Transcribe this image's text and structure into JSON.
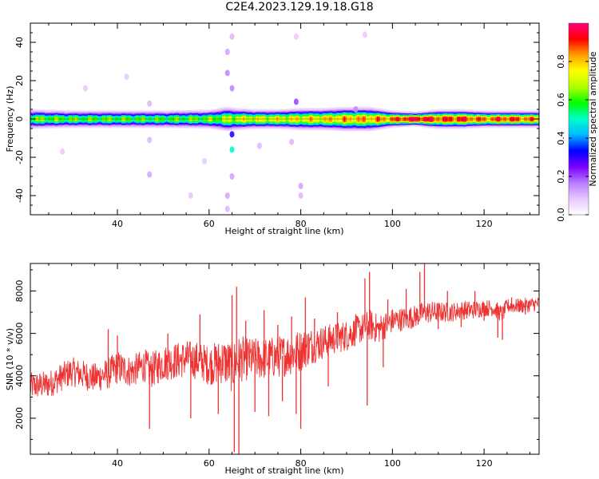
{
  "figure_title": "C2E4.2023.129.19.18.G18",
  "chart_data": [
    {
      "type": "heatmap",
      "xlabel": "Height of straight line (km)",
      "ylabel": "Frequency (Hz)",
      "xlim": [
        21,
        132
      ],
      "ylim": [
        -50,
        50
      ],
      "x_ticks": [
        40,
        60,
        80,
        100,
        120
      ],
      "y_ticks": [
        -40,
        -20,
        0,
        20,
        40
      ],
      "colorbar": {
        "label": "Normalized spectral amplitude",
        "range": [
          0.0,
          1.0
        ],
        "ticks": [
          0.0,
          0.2,
          0.4,
          0.6,
          0.8
        ],
        "colormap": [
          "#ffffff",
          "#e9c8ff",
          "#b87bff",
          "#7a00ff",
          "#0000ff",
          "#00b8ff",
          "#00ffcc",
          "#00ff00",
          "#b0ff00",
          "#ffff00",
          "#ffa000",
          "#ff0000",
          "#ff0080"
        ]
      },
      "ridge": {
        "center_frequency": 0,
        "x": [
          21,
          30,
          40,
          50,
          60,
          64,
          66,
          70,
          75,
          80,
          85,
          90,
          95,
          100,
          105,
          110,
          115,
          120,
          125,
          132
        ],
        "half_width": [
          4,
          3.5,
          3.5,
          3.5,
          3.8,
          5,
          4.5,
          4,
          4,
          4.5,
          4.5,
          5,
          5,
          3.5,
          3,
          4,
          4,
          3.5,
          3.5,
          3.5
        ],
        "peak_amplitude": [
          0.62,
          0.6,
          0.6,
          0.58,
          0.62,
          0.66,
          0.7,
          0.72,
          0.72,
          0.74,
          0.76,
          0.8,
          0.8,
          0.85,
          0.98,
          0.88,
          0.9,
          0.84,
          0.9,
          0.82
        ]
      },
      "scatter_spots": [
        {
          "x": 65,
          "y": 43,
          "amp": 0.1
        },
        {
          "x": 64,
          "y": 35,
          "amp": 0.12
        },
        {
          "x": 64,
          "y": 24,
          "amp": 0.15
        },
        {
          "x": 65,
          "y": 16,
          "amp": 0.15
        },
        {
          "x": 65,
          "y": -8,
          "amp": 0.3
        },
        {
          "x": 65,
          "y": -16,
          "amp": 0.5
        },
        {
          "x": 65,
          "y": -30,
          "amp": 0.12
        },
        {
          "x": 64,
          "y": -40,
          "amp": 0.12
        },
        {
          "x": 64,
          "y": -47,
          "amp": 0.1
        },
        {
          "x": 47,
          "y": -29,
          "amp": 0.12
        },
        {
          "x": 47,
          "y": 8,
          "amp": 0.1
        },
        {
          "x": 47,
          "y": -11,
          "amp": 0.1
        },
        {
          "x": 79,
          "y": 9,
          "amp": 0.2
        },
        {
          "x": 80,
          "y": -35,
          "amp": 0.12
        },
        {
          "x": 80,
          "y": -40,
          "amp": 0.1
        },
        {
          "x": 79,
          "y": 43,
          "amp": 0.08
        },
        {
          "x": 94,
          "y": 44,
          "amp": 0.08
        },
        {
          "x": 33,
          "y": 16,
          "amp": 0.08
        },
        {
          "x": 28,
          "y": -17,
          "amp": 0.08
        },
        {
          "x": 78,
          "y": -12,
          "amp": 0.1
        },
        {
          "x": 71,
          "y": -14,
          "amp": 0.1
        },
        {
          "x": 56,
          "y": -40,
          "amp": 0.08
        },
        {
          "x": 59,
          "y": -22,
          "amp": 0.08
        },
        {
          "x": 92,
          "y": 5,
          "amp": 0.15
        },
        {
          "x": 42,
          "y": 22,
          "amp": 0.08
        }
      ]
    },
    {
      "type": "line",
      "xlabel": "Height of straight line (km)",
      "ylabel": "SNR (10 * v/v)",
      "xlim": [
        21,
        132
      ],
      "ylim": [
        300,
        9300
      ],
      "x_ticks": [
        40,
        60,
        80,
        100,
        120
      ],
      "y_ticks": [
        2000,
        4000,
        6000,
        8000
      ],
      "series": [
        {
          "color": "#ee3333",
          "x": [
            21,
            25,
            30,
            35,
            38,
            40,
            43,
            46,
            47,
            50,
            55,
            58,
            60,
            63,
            64,
            65,
            66,
            67,
            69,
            72,
            75,
            77,
            79,
            80,
            82,
            85,
            88,
            90,
            92,
            94,
            95,
            97,
            100,
            103,
            105,
            107,
            108,
            110,
            113,
            115,
            117,
            120,
            122,
            124,
            125,
            128,
            132
          ],
          "mid": [
            3500,
            3600,
            4200,
            3900,
            4100,
            4400,
            4200,
            4500,
            4200,
            4600,
            4800,
            4700,
            4500,
            4700,
            4600,
            4400,
            4700,
            4800,
            4800,
            4800,
            4900,
            5000,
            5100,
            5200,
            5400,
            5600,
            5800,
            5900,
            6100,
            6300,
            6400,
            6200,
            6600,
            6700,
            6800,
            7000,
            7000,
            7000,
            7000,
            7100,
            7100,
            7200,
            7200,
            6900,
            7300,
            7300,
            7400
          ],
          "spread": [
            650,
            650,
            700,
            700,
            750,
            800,
            750,
            800,
            850,
            850,
            900,
            900,
            950,
            1100,
            1150,
            1200,
            1150,
            1100,
            1000,
            1000,
            1000,
            1000,
            1050,
            1000,
            900,
            800,
            750,
            750,
            700,
            700,
            750,
            700,
            600,
            550,
            550,
            500,
            550,
            500,
            450,
            450,
            450,
            400,
            400,
            400,
            350,
            350,
            350
          ],
          "spikes": [
            {
              "x": 38,
              "y": 6200
            },
            {
              "x": 40,
              "y": 5900
            },
            {
              "x": 47,
              "y": 1500
            },
            {
              "x": 51,
              "y": 6000
            },
            {
              "x": 56,
              "y": 2000
            },
            {
              "x": 58,
              "y": 6900
            },
            {
              "x": 62,
              "y": 2200
            },
            {
              "x": 65,
              "y": 7800
            },
            {
              "x": 65.5,
              "y": 400
            },
            {
              "x": 66,
              "y": 8200
            },
            {
              "x": 66.5,
              "y": 300
            },
            {
              "x": 68,
              "y": 6600
            },
            {
              "x": 70,
              "y": 2300
            },
            {
              "x": 72,
              "y": 7100
            },
            {
              "x": 73,
              "y": 2100
            },
            {
              "x": 75,
              "y": 6400
            },
            {
              "x": 76,
              "y": 2800
            },
            {
              "x": 78,
              "y": 6800
            },
            {
              "x": 79,
              "y": 2200
            },
            {
              "x": 80,
              "y": 1500
            },
            {
              "x": 81,
              "y": 7700
            },
            {
              "x": 83,
              "y": 6700
            },
            {
              "x": 86,
              "y": 3500
            },
            {
              "x": 88,
              "y": 7000
            },
            {
              "x": 92,
              "y": 6900
            },
            {
              "x": 94,
              "y": 8600
            },
            {
              "x": 94.5,
              "y": 2600
            },
            {
              "x": 95,
              "y": 8900
            },
            {
              "x": 98,
              "y": 4400
            },
            {
              "x": 99,
              "y": 7600
            },
            {
              "x": 103,
              "y": 8100
            },
            {
              "x": 106,
              "y": 8900
            },
            {
              "x": 107,
              "y": 9300
            },
            {
              "x": 110,
              "y": 6200
            },
            {
              "x": 112,
              "y": 8000
            },
            {
              "x": 115,
              "y": 6300
            },
            {
              "x": 118,
              "y": 8000
            },
            {
              "x": 120,
              "y": 6600
            },
            {
              "x": 123,
              "y": 5800
            },
            {
              "x": 124,
              "y": 5700
            },
            {
              "x": 126,
              "y": 7700
            },
            {
              "x": 129,
              "y": 6900
            }
          ]
        }
      ]
    }
  ]
}
